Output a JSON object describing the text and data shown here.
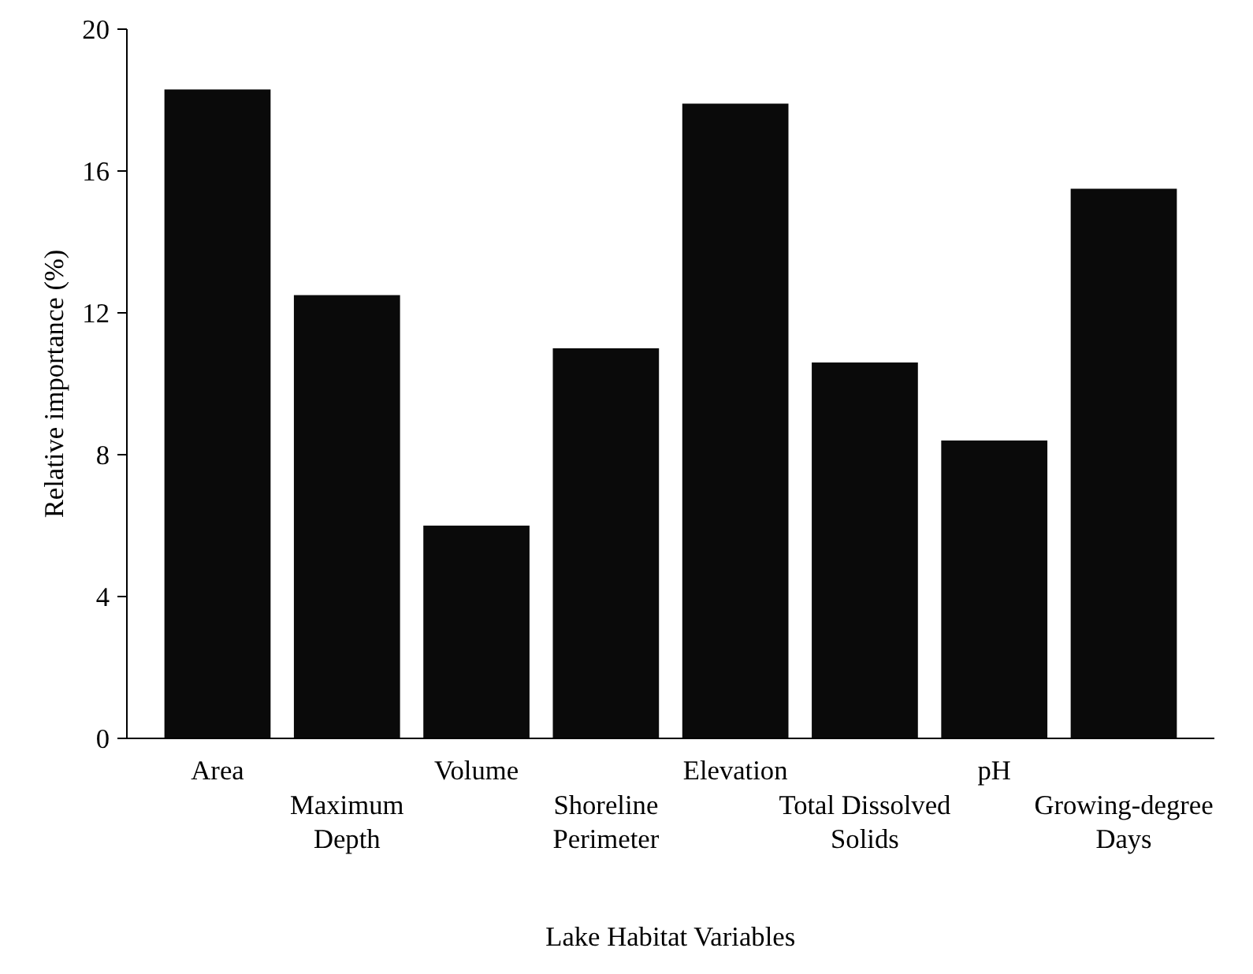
{
  "chart_data": {
    "type": "bar",
    "xlabel": "Lake Habitat Variables",
    "ylabel": "Relative importance (%)",
    "categories": [
      "Area",
      "Maximum Depth",
      "Volume",
      "Shoreline Perimeter",
      "Elevation",
      "Total Dissolved Solids",
      "pH",
      "Growing-degree Days"
    ],
    "values": [
      18.3,
      12.5,
      6.0,
      11.0,
      17.9,
      10.6,
      8.4,
      15.5
    ],
    "color": "#0a0a0a",
    "ylim": [
      0,
      20
    ],
    "yticks": [
      0,
      4,
      8,
      12,
      16,
      20
    ],
    "grid": false
  }
}
